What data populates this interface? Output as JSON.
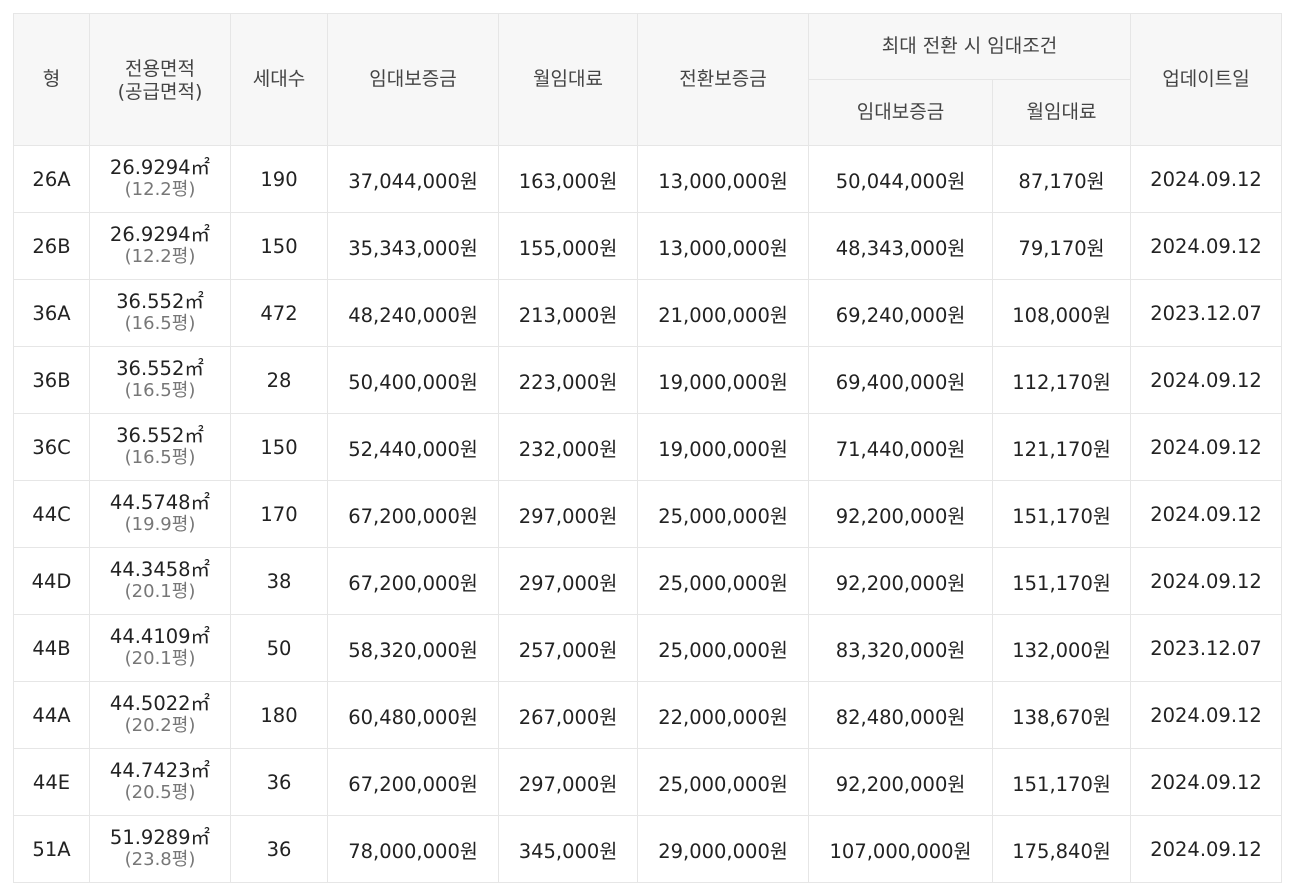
{
  "table": {
    "headers": {
      "type": "형",
      "area_line1": "전용면적",
      "area_line2": "(공급면적)",
      "households": "세대수",
      "deposit": "임대보증금",
      "monthly_rent": "월임대료",
      "conversion_deposit": "전환보증금",
      "max_conversion_group": "최대 전환 시 임대조건",
      "max_deposit": "임대보증금",
      "max_monthly_rent": "월임대료",
      "updated": "업데이트일"
    },
    "rows": [
      {
        "type": "26A",
        "area": "26.9294㎡",
        "area_py": "(12.2평)",
        "households": "190",
        "deposit": "37,044,000원",
        "monthly": "163,000원",
        "conversion": "13,000,000원",
        "max_deposit": "50,044,000원",
        "max_monthly": "87,170원",
        "updated": "2024.09.12"
      },
      {
        "type": "26B",
        "area": "26.9294㎡",
        "area_py": "(12.2평)",
        "households": "150",
        "deposit": "35,343,000원",
        "monthly": "155,000원",
        "conversion": "13,000,000원",
        "max_deposit": "48,343,000원",
        "max_monthly": "79,170원",
        "updated": "2024.09.12"
      },
      {
        "type": "36A",
        "area": "36.552㎡",
        "area_py": "(16.5평)",
        "households": "472",
        "deposit": "48,240,000원",
        "monthly": "213,000원",
        "conversion": "21,000,000원",
        "max_deposit": "69,240,000원",
        "max_monthly": "108,000원",
        "updated": "2023.12.07"
      },
      {
        "type": "36B",
        "area": "36.552㎡",
        "area_py": "(16.5평)",
        "households": "28",
        "deposit": "50,400,000원",
        "monthly": "223,000원",
        "conversion": "19,000,000원",
        "max_deposit": "69,400,000원",
        "max_monthly": "112,170원",
        "updated": "2024.09.12"
      },
      {
        "type": "36C",
        "area": "36.552㎡",
        "area_py": "(16.5평)",
        "households": "150",
        "deposit": "52,440,000원",
        "monthly": "232,000원",
        "conversion": "19,000,000원",
        "max_deposit": "71,440,000원",
        "max_monthly": "121,170원",
        "updated": "2024.09.12"
      },
      {
        "type": "44C",
        "area": "44.5748㎡",
        "area_py": "(19.9평)",
        "households": "170",
        "deposit": "67,200,000원",
        "monthly": "297,000원",
        "conversion": "25,000,000원",
        "max_deposit": "92,200,000원",
        "max_monthly": "151,170원",
        "updated": "2024.09.12"
      },
      {
        "type": "44D",
        "area": "44.3458㎡",
        "area_py": "(20.1평)",
        "households": "38",
        "deposit": "67,200,000원",
        "monthly": "297,000원",
        "conversion": "25,000,000원",
        "max_deposit": "92,200,000원",
        "max_monthly": "151,170원",
        "updated": "2024.09.12"
      },
      {
        "type": "44B",
        "area": "44.4109㎡",
        "area_py": "(20.1평)",
        "households": "50",
        "deposit": "58,320,000원",
        "monthly": "257,000원",
        "conversion": "25,000,000원",
        "max_deposit": "83,320,000원",
        "max_monthly": "132,000원",
        "updated": "2023.12.07"
      },
      {
        "type": "44A",
        "area": "44.5022㎡",
        "area_py": "(20.2평)",
        "households": "180",
        "deposit": "60,480,000원",
        "monthly": "267,000원",
        "conversion": "22,000,000원",
        "max_deposit": "82,480,000원",
        "max_monthly": "138,670원",
        "updated": "2024.09.12"
      },
      {
        "type": "44E",
        "area": "44.7423㎡",
        "area_py": "(20.5평)",
        "households": "36",
        "deposit": "67,200,000원",
        "monthly": "297,000원",
        "conversion": "25,000,000원",
        "max_deposit": "92,200,000원",
        "max_monthly": "151,170원",
        "updated": "2024.09.12"
      },
      {
        "type": "51A",
        "area": "51.9289㎡",
        "area_py": "(23.8평)",
        "households": "36",
        "deposit": "78,000,000원",
        "monthly": "345,000원",
        "conversion": "29,000,000원",
        "max_deposit": "107,000,000원",
        "max_monthly": "175,840원",
        "updated": "2024.09.12"
      }
    ]
  }
}
